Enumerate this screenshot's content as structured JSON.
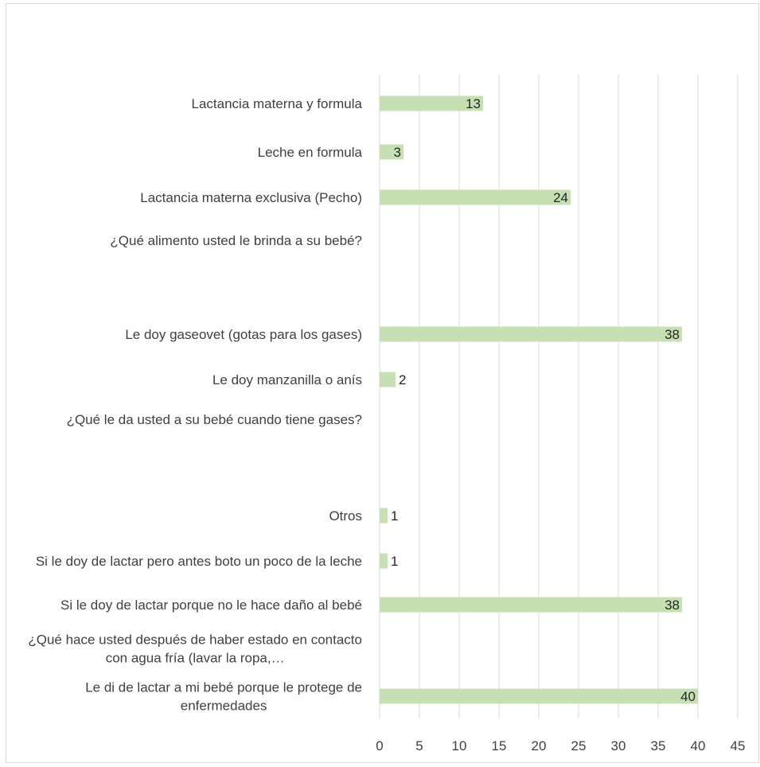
{
  "chart_data": {
    "type": "bar",
    "orientation": "horizontal",
    "title": "",
    "xlabel": "",
    "ylabel": "",
    "xlim": [
      0,
      45
    ],
    "x_ticks": [
      "0",
      "5",
      "10",
      "15",
      "20",
      "25",
      "30",
      "35",
      "40",
      "45"
    ],
    "grid": "vertical",
    "legend": "none",
    "bar_color": "#c6e0b4",
    "categories": [
      {
        "label": "Lactancia materna y formula",
        "value": 13
      },
      {
        "label": "Leche en formula",
        "value": 3
      },
      {
        "label": "Lactancia materna exclusiva (Pecho)",
        "value": 24
      },
      {
        "label": "¿Qué alimento usted le brinda a su bebé?",
        "value": null
      },
      {
        "label": "",
        "value": null
      },
      {
        "label": "Le doy gaseovet (gotas para los gases)",
        "value": 38
      },
      {
        "label": "Le doy manzanilla o anís",
        "value": 2
      },
      {
        "label": "¿Qué le da usted a su bebé cuando tiene gases?",
        "value": null
      },
      {
        "label": "",
        "value": null
      },
      {
        "label": "Otros",
        "value": 1
      },
      {
        "label": "Si le doy de lactar pero antes boto un poco de la leche",
        "value": 1
      },
      {
        "label": "Si le doy de lactar porque no le hace daño al bebé",
        "value": 38
      },
      {
        "label": "¿Qué hace usted después de haber estado en contacto con agua fría (lavar la ropa,…",
        "value": null
      },
      {
        "label": "Le di de lactar a mi bebé porque le protege de enfermedades",
        "value": 40
      }
    ]
  }
}
